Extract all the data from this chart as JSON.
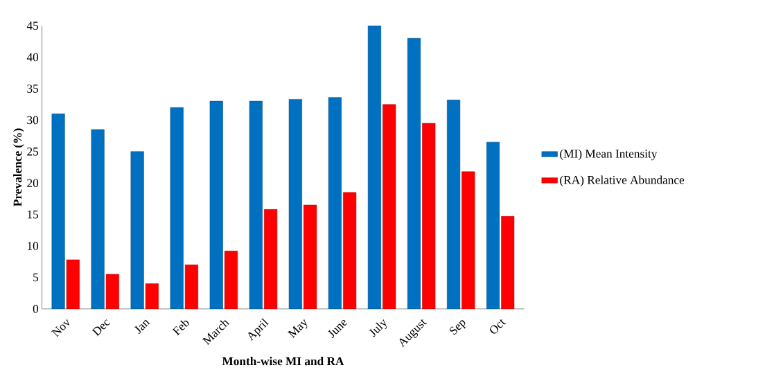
{
  "chart_data": {
    "type": "bar",
    "xlabel": "Month-wise MI and RA",
    "ylabel": "Prevalence (%)",
    "categories": [
      "Nov",
      "Dec",
      "Jan",
      "Feb",
      "March",
      "April",
      "May",
      "June",
      "July",
      "August",
      "Sep",
      "Oct"
    ],
    "series": [
      {
        "name": "(MI) Mean Intensity",
        "color": "#0070c0",
        "values": [
          31,
          28.5,
          25,
          32,
          33,
          33,
          33.3,
          33.6,
          45,
          43,
          33.2,
          26.5
        ]
      },
      {
        "name": "(RA) Relative Abundance",
        "color": "#ff0000",
        "values": [
          7.8,
          5.5,
          4,
          7,
          9.2,
          15.8,
          16.5,
          18.5,
          32.5,
          29.5,
          21.8,
          14.7
        ]
      }
    ],
    "ylim": [
      0,
      45
    ],
    "yticks": [
      0,
      5,
      10,
      15,
      20,
      25,
      30,
      35,
      40,
      45
    ],
    "grid": false,
    "legend": "right"
  }
}
